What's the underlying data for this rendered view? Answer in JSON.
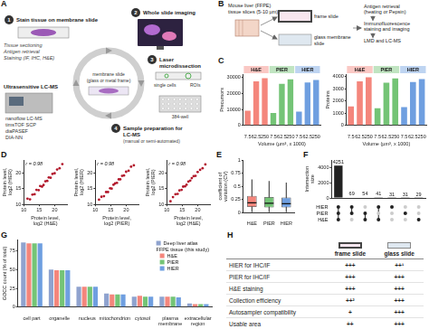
{
  "figure": {
    "A": {
      "letter": "A",
      "steps": [
        {
          "number": 1,
          "text": "Stain tissue on membrane slide"
        },
        {
          "number": 2,
          "text": "Whole slide imaging"
        },
        {
          "number": 3,
          "text": "Laser microdissection"
        },
        {
          "number": 4,
          "text": "Sample preparation for LC-MS"
        }
      ],
      "tissue_steps": [
        "Tissue sectioning",
        "Antigen retrieval",
        "Staining (IF, IHC, H&E)"
      ],
      "slide_label": [
        "membrane slide",
        "(glass or metal frame)"
      ],
      "lmd_labels": [
        "single cells",
        "ROIs"
      ],
      "prep_note": "(manual or semi-automated)",
      "plate_label": "384-well",
      "lcms_title": "Ultrasensitive LC-MS",
      "lcms_methods": [
        "nanoflow LC-MS",
        "timsTOF SCP",
        "diaPASEF",
        "DIA-NN"
      ]
    },
    "B": {
      "letter": "B",
      "source": "Mouse liver (FFPE) tissue slices (5-10 µm)",
      "slides": [
        "frame slide",
        "glass membrane slide"
      ],
      "steps": [
        "Antigen retrieval (heating or Pepsin)",
        "Immunofluorescence staining and imaging",
        "LMD and LC-MS"
      ]
    },
    "H": {
      "letter": "H",
      "columns": [
        "frame slide",
        "glass slide"
      ],
      "rows": [
        [
          "HIER for IHC/IF",
          "+++",
          "++¹"
        ],
        [
          "PIER for IHC/IF",
          "+++",
          "+++"
        ],
        [
          "H&E staining",
          "+++",
          "+++"
        ],
        [
          "Collection efficiency",
          "++²",
          "+++"
        ],
        [
          "Autosampler compatibility",
          "+",
          "+++"
        ],
        [
          "Usable area",
          "++",
          "+++"
        ]
      ]
    }
  },
  "chart_data": [
    {
      "panel": "C",
      "type": "bar",
      "categories": [
        "7.5",
        "62.5",
        "250"
      ],
      "series": [
        {
          "name": "H&E",
          "color": "#f4867c",
          "values": [
            9200,
            27500,
            29500
          ]
        },
        {
          "name": "PIER",
          "color": "#74c476",
          "values": [
            7800,
            26000,
            28800
          ]
        },
        {
          "name": "HIER",
          "color": "#6f9fe0",
          "values": [
            8600,
            26800,
            28400
          ]
        }
      ],
      "x_label": "Volume (µm³, x 1000)",
      "y_label": "Precursors",
      "ylim": [
        0,
        32000
      ],
      "yticks": [
        0,
        10000,
        20000,
        30000
      ],
      "grid": false
    },
    {
      "panel": "C",
      "type": "bar",
      "categories": [
        "7.5",
        "62.5",
        "250"
      ],
      "series": [
        {
          "name": "H&E",
          "color": "#f4867c",
          "values": [
            1550,
            3600,
            3950
          ]
        },
        {
          "name": "PIER",
          "color": "#74c476",
          "values": [
            1400,
            3500,
            3850
          ]
        },
        {
          "name": "HIER",
          "color": "#6f9fe0",
          "values": [
            1500,
            3550,
            3800
          ]
        }
      ],
      "x_label": "Volume (µm³, x 1000)",
      "y_label": "Proteins",
      "ylim": [
        0,
        4200
      ],
      "yticks": [
        0,
        1000,
        2000,
        3000,
        4000
      ],
      "grid": false
    },
    {
      "panel": "D",
      "type": "scatter",
      "annotation": "r = 0.98",
      "color": "#b2182b",
      "x": [
        11.2,
        12.0,
        12.8,
        13.5,
        14.1,
        14.8,
        15.3,
        15.9,
        16.4,
        17.0,
        17.6,
        18.1,
        18.7,
        19.3,
        20.0,
        20.8,
        21.6,
        22.5
      ],
      "y": [
        11.8,
        11.6,
        13.1,
        13.2,
        14.6,
        14.5,
        15.8,
        15.6,
        16.1,
        17.3,
        17.4,
        18.5,
        18.4,
        19.6,
        19.8,
        21.0,
        21.4,
        22.7
      ],
      "x_label": "Protein level, log2 (H&E)",
      "y_label": "Protein level, log2 (HIER)",
      "xlim": [
        10,
        24
      ],
      "xticks": [
        10,
        15,
        20
      ],
      "ylim": [
        10,
        24
      ],
      "yticks": [
        10,
        15,
        20
      ],
      "grid": false
    },
    {
      "panel": "D",
      "type": "scatter",
      "annotation": "r = 0.98",
      "color": "#b2182b",
      "x": [
        11.2,
        12.0,
        12.8,
        13.5,
        14.1,
        14.8,
        15.3,
        15.9,
        16.4,
        17.0,
        17.6,
        18.1,
        18.7,
        19.3,
        20.0,
        20.8,
        21.6,
        22.5
      ],
      "y": [
        11.5,
        12.4,
        12.6,
        13.9,
        13.9,
        15.1,
        15.0,
        16.2,
        16.6,
        16.8,
        17.9,
        17.9,
        19.0,
        19.1,
        20.3,
        20.6,
        21.9,
        22.3
      ],
      "x_label": "Protein level, log2 (PIER)",
      "y_label": "Protein level, log2 (HIER)",
      "xlim": [
        10,
        24
      ],
      "xticks": [
        10,
        15,
        20
      ],
      "ylim": [
        10,
        24
      ],
      "yticks": [
        10,
        15,
        20
      ],
      "grid": false
    },
    {
      "panel": "D",
      "type": "scatter",
      "annotation": "r = 0.98",
      "color": "#b2182b",
      "x": [
        11.2,
        12.0,
        12.8,
        13.5,
        14.1,
        14.8,
        15.3,
        15.9,
        16.4,
        17.0,
        17.6,
        18.1,
        18.7,
        19.3,
        20.0,
        20.8,
        21.6,
        22.5
      ],
      "y": [
        11.0,
        12.3,
        13.2,
        13.3,
        14.4,
        14.6,
        15.6,
        15.7,
        16.2,
        17.2,
        17.5,
        18.3,
        18.9,
        19.0,
        20.2,
        20.9,
        21.4,
        22.6
      ],
      "x_label": "Protein level, log2 (H&E)",
      "y_label": "Protein level, log2 (PIER)",
      "xlim": [
        10,
        24
      ],
      "xticks": [
        10,
        15,
        20
      ],
      "ylim": [
        10,
        24
      ],
      "yticks": [
        10,
        15,
        20
      ],
      "grid": false
    },
    {
      "panel": "E",
      "type": "box",
      "categories": [
        "H&E",
        "PIER",
        "HIER"
      ],
      "colors": [
        "#f4867c",
        "#74c476",
        "#6f9fe0"
      ],
      "whisker_low": [
        0.01,
        0.01,
        0.01
      ],
      "q1": [
        0.11,
        0.1,
        0.1
      ],
      "median": [
        0.19,
        0.18,
        0.17
      ],
      "q3": [
        0.32,
        0.3,
        0.29
      ],
      "whisker_high": [
        0.63,
        0.6,
        0.57
      ],
      "y_label": "coefficient of variation (CV)",
      "ylim": [
        0,
        1
      ],
      "yticks": [
        0,
        0.25,
        0.5,
        0.75,
        1
      ],
      "grid": false
    },
    {
      "panel": "F",
      "type": "bar",
      "categories": [
        null,
        null,
        null,
        null,
        null,
        null,
        null
      ],
      "values": [
        4251,
        69,
        54,
        41,
        31,
        31,
        29
      ],
      "color": "#222222",
      "data_labels": true,
      "sets": [
        "HIER",
        "PIER",
        "H&E"
      ],
      "memberships": [
        [
          true,
          true,
          true
        ],
        [
          true,
          true,
          false
        ],
        [
          false,
          true,
          true
        ],
        [
          true,
          false,
          true
        ],
        [
          true,
          false,
          false
        ],
        [
          false,
          true,
          false
        ],
        [
          false,
          false,
          true
        ]
      ],
      "y_label": "Intersection size",
      "ylim": [
        0,
        5000
      ],
      "yticks": [
        0,
        2000,
        4000
      ],
      "grid": false
    },
    {
      "panel": "G",
      "type": "bar",
      "categories": [
        "cell part",
        "organelle",
        "nucleus",
        "mitochondrion",
        "cytosol",
        "plasma membrane",
        "extracellular region"
      ],
      "series": [
        {
          "name": "Deep liver atlas",
          "color": "#8fa3cf",
          "values": [
            86,
            50,
            27,
            18,
            14,
            14,
            5
          ]
        },
        {
          "name": "H&E",
          "color": "#f4867c",
          "values": [
            85,
            49,
            27,
            17,
            15,
            14,
            4
          ]
        },
        {
          "name": "PIER",
          "color": "#74c476",
          "values": [
            85,
            49,
            27,
            17,
            14,
            14,
            4
          ]
        },
        {
          "name": "HIER",
          "color": "#6f9fe0",
          "values": [
            85,
            49,
            27,
            17,
            14,
            13,
            4
          ]
        }
      ],
      "legend": "top-right",
      "legend_title": "FFPE tissue (this study)",
      "y_label": "GOCC count (% of total)",
      "ylim": [
        0,
        90
      ],
      "yticks": [
        0,
        25,
        50,
        75
      ],
      "grid": false
    }
  ]
}
